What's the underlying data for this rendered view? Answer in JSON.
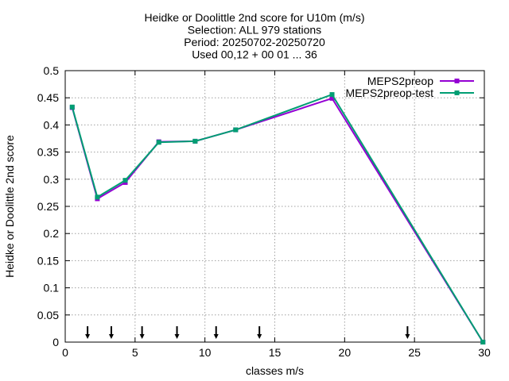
{
  "chart_data": {
    "type": "line",
    "title_lines": [
      "Heidke or Doolittle 2nd score  for U10m (m/s)",
      "Selection: ALL    979 stations",
      "Period: 20250702-20250720",
      "Used 00,12 + 00 01 ... 36"
    ],
    "xlabel": "classes m/s",
    "ylabel": "Heidke or Doolittle 2nd score",
    "xlim": [
      0,
      30
    ],
    "ylim": [
      0,
      0.5
    ],
    "x_ticks": [
      "0",
      "5",
      "10",
      "15",
      "20",
      "25",
      "30"
    ],
    "y_ticks": [
      "0",
      "0.05",
      "0.1",
      "0.15",
      "0.2",
      "0.25",
      "0.3",
      "0.35",
      "0.4",
      "0.45",
      "0.5"
    ],
    "grid": true,
    "legend_position": "top-right",
    "series": [
      {
        "name": "MEPS2preop",
        "color": "#9400d3",
        "x": [
          0.5,
          2.3,
          4.3,
          6.7,
          9.3,
          12.2,
          19.1,
          29.9
        ],
        "y": [
          0.432,
          0.264,
          0.294,
          0.369,
          0.37,
          0.391,
          0.449,
          0.0
        ]
      },
      {
        "name": "MEPS2preop-test",
        "color": "#009e73",
        "x": [
          0.5,
          2.3,
          4.3,
          6.7,
          9.3,
          12.2,
          19.1,
          29.9
        ],
        "y": [
          0.433,
          0.267,
          0.298,
          0.368,
          0.37,
          0.391,
          0.456,
          0.0
        ]
      }
    ],
    "arrow_markers_x": [
      1.6,
      3.3,
      5.5,
      8.0,
      10.8,
      13.9,
      24.5
    ]
  }
}
